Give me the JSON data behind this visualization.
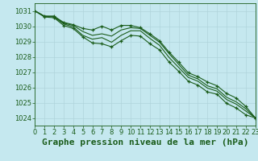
{
  "title": "Graphe pression niveau de la mer (hPa)",
  "background_color": "#c5e8ef",
  "grid_color": "#b0d4dc",
  "line_color": "#1a5c1a",
  "xlim": [
    0,
    23
  ],
  "ylim": [
    1023.5,
    1031.5
  ],
  "yticks": [
    1024,
    1025,
    1026,
    1027,
    1028,
    1029,
    1030,
    1031
  ],
  "xticks": [
    0,
    1,
    2,
    3,
    4,
    5,
    6,
    7,
    8,
    9,
    10,
    11,
    12,
    13,
    14,
    15,
    16,
    17,
    18,
    19,
    20,
    21,
    22,
    23
  ],
  "series": [
    [
      1031.0,
      1030.65,
      1030.65,
      1030.25,
      1030.1,
      1029.85,
      1029.75,
      1030.0,
      1029.75,
      1030.05,
      1030.05,
      1029.9,
      1029.5,
      1029.05,
      1028.3,
      1027.65,
      1026.95,
      1026.7,
      1026.35,
      1026.1,
      1025.6,
      1025.3,
      1024.75,
      1024.0
    ],
    [
      1031.0,
      1030.65,
      1030.65,
      1030.2,
      1030.05,
      1029.65,
      1029.4,
      1029.5,
      1029.35,
      1029.75,
      1029.9,
      1029.85,
      1029.4,
      1028.95,
      1028.2,
      1027.5,
      1026.8,
      1026.55,
      1026.1,
      1025.9,
      1025.35,
      1025.05,
      1024.6,
      1024.0
    ],
    [
      1031.0,
      1030.65,
      1030.6,
      1030.15,
      1029.95,
      1029.4,
      1029.15,
      1029.25,
      1028.95,
      1029.4,
      1029.7,
      1029.7,
      1029.2,
      1028.75,
      1027.95,
      1027.3,
      1026.65,
      1026.4,
      1025.95,
      1025.75,
      1025.2,
      1024.9,
      1024.45,
      1024.0
    ],
    [
      1031.0,
      1030.6,
      1030.55,
      1030.05,
      1029.85,
      1029.3,
      1028.9,
      1028.85,
      1028.65,
      1029.05,
      1029.4,
      1029.35,
      1028.85,
      1028.45,
      1027.65,
      1027.05,
      1026.4,
      1026.15,
      1025.7,
      1025.55,
      1024.95,
      1024.65,
      1024.2,
      1024.0
    ]
  ],
  "marker_series": [
    0,
    3
  ],
  "title_fontsize": 8,
  "tick_fontsize": 6,
  "tick_color": "#1a5c1a",
  "axis_color": "#1a5c1a",
  "linewidth": 0.8,
  "markersize": 3.5
}
